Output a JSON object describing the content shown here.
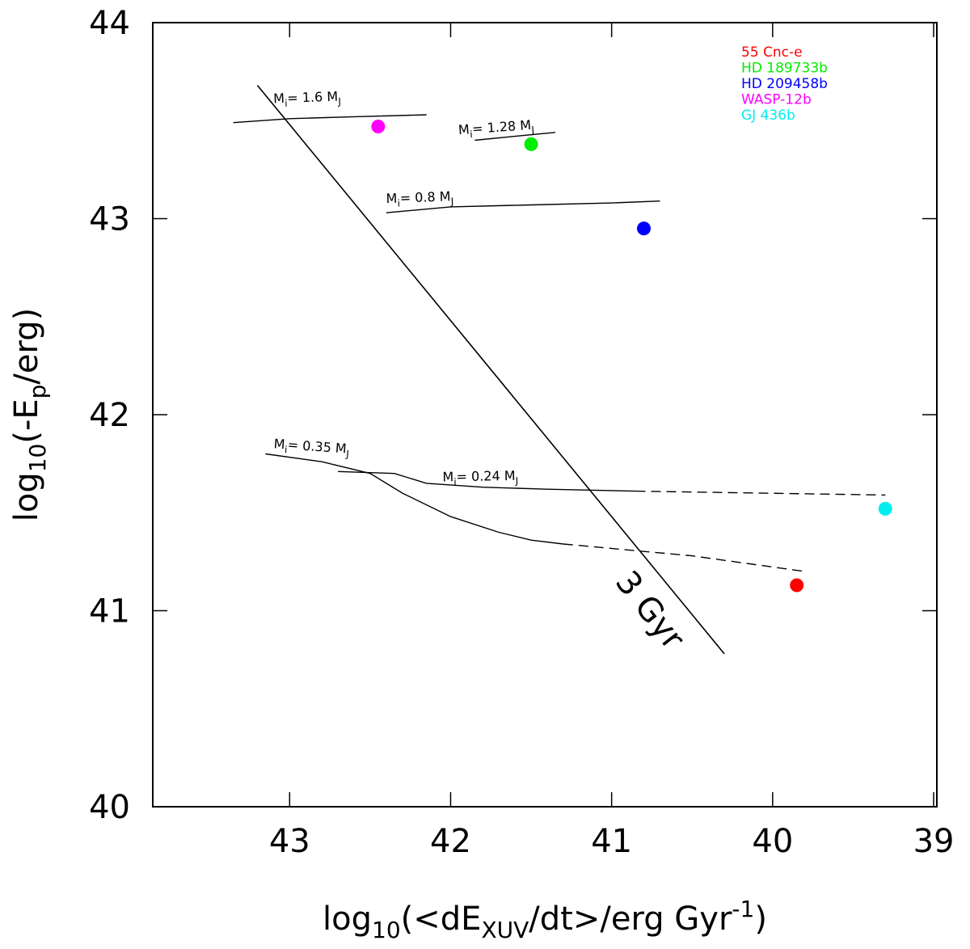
{
  "chart_data": {
    "type": "scatter",
    "title": "",
    "xlabel": {
      "base": "log",
      "sub1": "10",
      "mid": "(<dE",
      "sub2": "XUV",
      "end": "/dt>/erg Gyr",
      "sup": "-1",
      "close": ")"
    },
    "ylabel": {
      "base": "log",
      "sub1": "10",
      "mid": "(-E",
      "sub2": "p",
      "end": "/erg)"
    },
    "xlim": [
      43.85,
      38.98
    ],
    "ylim": [
      40,
      44
    ],
    "x_reversed": true,
    "xticks": [
      43,
      42,
      41,
      40,
      39
    ],
    "yticks": [
      40,
      41,
      42,
      43,
      44
    ],
    "legend_position": "top-right",
    "planets": [
      {
        "name": "55 Cnc-e",
        "x": 39.85,
        "y": 41.13,
        "color": "#ff0000"
      },
      {
        "name": "HD 189733b",
        "x": 41.5,
        "y": 43.38,
        "color": "#00ee00"
      },
      {
        "name": "HD 209458b",
        "x": 40.8,
        "y": 42.95,
        "color": "#0000ff"
      },
      {
        "name": "WASP-12b",
        "x": 42.45,
        "y": 43.47,
        "color": "#ff00ff"
      },
      {
        "name": "GJ 436b",
        "x": 39.3,
        "y": 41.52,
        "color": "#00eeee"
      }
    ],
    "tracks": [
      {
        "label": "M",
        "sub": "i",
        "value": "= 1.6 M",
        "sub2": "J",
        "solid": [
          [
            43.35,
            43.49
          ],
          [
            43.0,
            43.51
          ],
          [
            42.6,
            43.52
          ],
          [
            42.15,
            43.53
          ]
        ],
        "dashed": []
      },
      {
        "label": "M",
        "sub": "i",
        "value": "= 1.28 M",
        "sub2": "J",
        "solid": [
          [
            41.85,
            43.4
          ],
          [
            41.6,
            43.42
          ],
          [
            41.35,
            43.44
          ]
        ],
        "dashed": []
      },
      {
        "label": "M",
        "sub": "i",
        "value": "= 0.8 M",
        "sub2": "J",
        "solid": [
          [
            42.4,
            43.03
          ],
          [
            42.0,
            43.06
          ],
          [
            41.5,
            43.07
          ],
          [
            41.0,
            43.08
          ],
          [
            40.7,
            43.09
          ]
        ],
        "dashed": []
      },
      {
        "label": "M",
        "sub": "i",
        "value": "= 0.35 M",
        "sub2": "J",
        "solid": [
          [
            43.15,
            41.8
          ],
          [
            42.8,
            41.76
          ],
          [
            42.5,
            41.7
          ],
          [
            42.3,
            41.6
          ],
          [
            42.0,
            41.48
          ],
          [
            41.7,
            41.4
          ],
          [
            41.5,
            41.36
          ],
          [
            41.3,
            41.34
          ]
        ],
        "dashed": [
          [
            41.3,
            41.34
          ],
          [
            40.5,
            41.28
          ],
          [
            39.8,
            41.2
          ]
        ]
      },
      {
        "label": "M",
        "sub": "i",
        "value": "= 0.24 M",
        "sub2": "J",
        "solid": [
          [
            42.7,
            41.71
          ],
          [
            42.35,
            41.7
          ],
          [
            42.15,
            41.65
          ],
          [
            41.8,
            41.63
          ],
          [
            41.4,
            41.62
          ],
          [
            40.85,
            41.61
          ]
        ],
        "dashed": [
          [
            40.85,
            41.61
          ],
          [
            39.3,
            41.59
          ]
        ]
      }
    ],
    "isochrone": {
      "label": "3 Gyr",
      "points": [
        [
          43.2,
          43.68
        ],
        [
          40.3,
          40.78
        ]
      ]
    }
  }
}
